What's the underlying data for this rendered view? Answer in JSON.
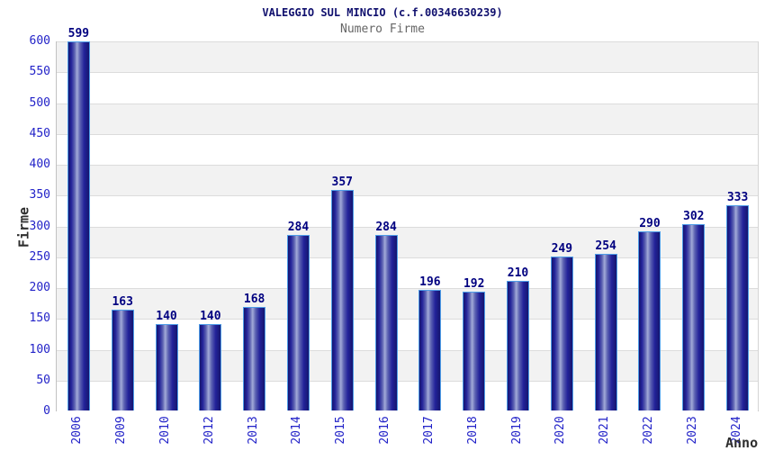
{
  "header": {
    "title": "VALEGGIO SUL MINCIO (c.f.00346630239)",
    "subtitle": "Numero Firme"
  },
  "chart_data": {
    "type": "bar",
    "title": "VALEGGIO SUL MINCIO (c.f.00346630239)",
    "subtitle": "Numero Firme",
    "xlabel": "Anno",
    "ylabel": "Firme",
    "categories": [
      "2006",
      "2009",
      "2010",
      "2012",
      "2013",
      "2014",
      "2015",
      "2016",
      "2017",
      "2018",
      "2019",
      "2020",
      "2021",
      "2022",
      "2023",
      "2024"
    ],
    "values": [
      599,
      163,
      140,
      140,
      168,
      284,
      357,
      284,
      196,
      192,
      210,
      249,
      254,
      290,
      302,
      333
    ],
    "ylim": [
      0,
      600
    ],
    "ytick_step": 50,
    "grid": true,
    "legend": false,
    "band_fill": "alternating horizontal bands, gray on top"
  },
  "colors": {
    "title": "#10106e",
    "subtitle": "#666666",
    "tick_labels": "#2222c8",
    "value_labels": "#000080",
    "axis_name_labels": "#2e2e2e",
    "bar_border": "#4e9de8",
    "bar_dark": "#15156e",
    "bar_highlight": "#a2aad8",
    "band_gray": "#f2f2f2",
    "band_white": "#ffffff",
    "gridline": "#dcdcdc",
    "background": "#ffffff"
  }
}
